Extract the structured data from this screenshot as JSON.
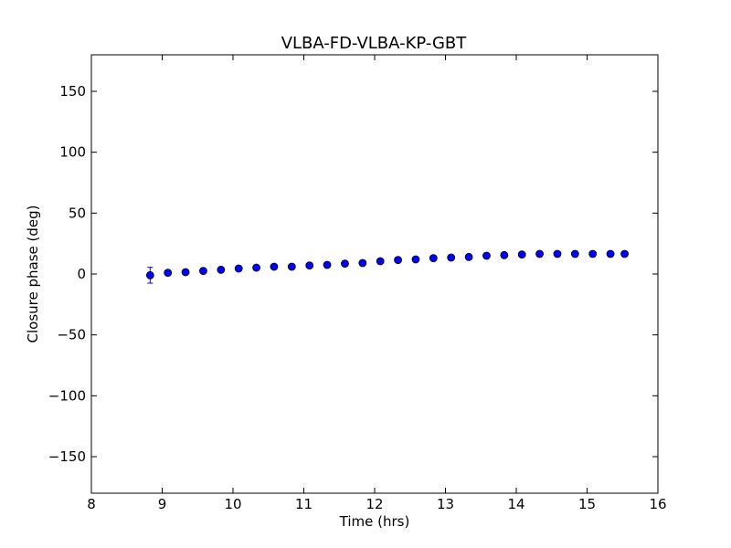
{
  "chart_data": {
    "type": "scatter",
    "title": "VLBA-FD-VLBA-KP-GBT",
    "xlabel": "Time (hrs)",
    "ylabel": "Closure phase (deg)",
    "xlim": [
      8,
      16
    ],
    "ylim": [
      -180,
      180
    ],
    "xticks": [
      8,
      9,
      10,
      11,
      12,
      13,
      14,
      15,
      16
    ],
    "xtick_labels": [
      "8",
      "9",
      "10",
      "11",
      "12",
      "13",
      "14",
      "15",
      "16"
    ],
    "yticks": [
      -150,
      -100,
      -50,
      0,
      50,
      100,
      150
    ],
    "ytick_labels": [
      "−150",
      "−100",
      "−50",
      "0",
      "50",
      "100",
      "150"
    ],
    "grid": false,
    "marker_color": "#0000ff",
    "marker_edge_color": "#000000",
    "errorbar_color": "#0000ff",
    "series": [
      {
        "x": [
          8.83,
          9.08,
          9.33,
          9.58,
          9.83,
          10.08,
          10.33,
          10.58,
          10.83,
          11.08,
          11.33,
          11.58,
          11.83,
          12.08,
          12.33,
          12.58,
          12.83,
          13.08,
          13.33,
          13.58,
          13.83,
          14.08,
          14.33,
          14.58,
          14.83,
          15.08,
          15.33,
          15.53
        ],
        "y": [
          -1.0,
          1.0,
          1.5,
          2.5,
          3.5,
          4.5,
          5.2,
          6.0,
          6.0,
          7.0,
          7.5,
          8.5,
          9.0,
          10.5,
          11.5,
          12.0,
          13.0,
          13.5,
          14.0,
          15.0,
          15.5,
          16.0,
          16.5,
          16.5,
          16.5,
          16.5,
          16.5,
          16.5
        ],
        "yerr": [
          6.5,
          1.2,
          1.0,
          1.0,
          1.0,
          1.0,
          1.0,
          1.0,
          1.0,
          1.0,
          1.0,
          1.0,
          1.0,
          1.0,
          1.0,
          1.0,
          1.0,
          1.0,
          1.0,
          1.0,
          1.0,
          1.0,
          1.0,
          1.0,
          1.0,
          1.0,
          1.0,
          1.0
        ]
      }
    ]
  }
}
